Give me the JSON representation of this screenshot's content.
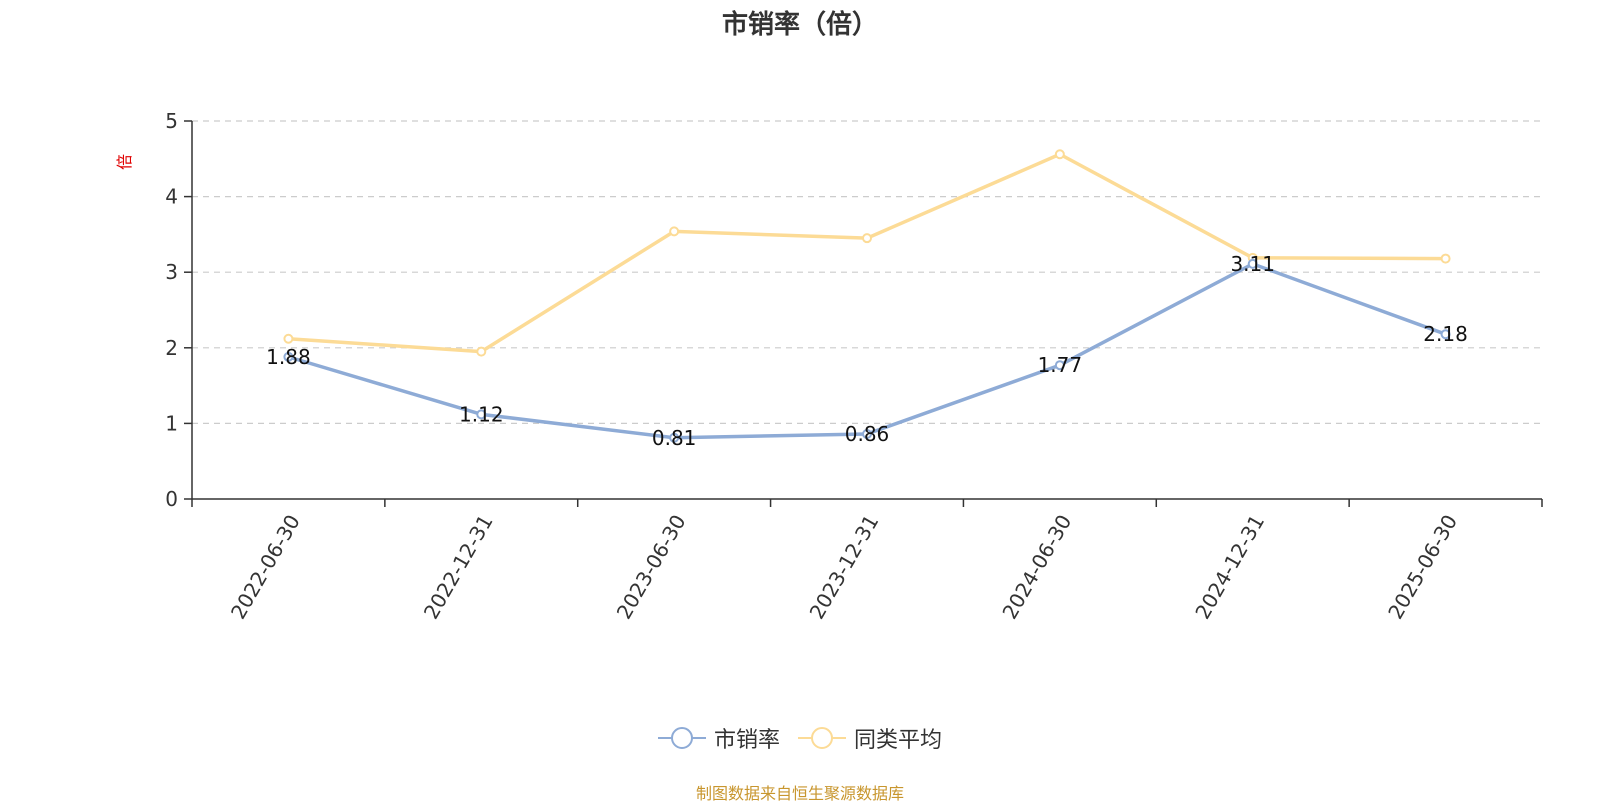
{
  "chart_data": {
    "type": "line",
    "title": "市销率（倍）",
    "ylabel": "倍",
    "xlabel": "",
    "categories": [
      "2022-06-30",
      "2022-12-31",
      "2023-06-30",
      "2023-12-31",
      "2024-06-30",
      "2024-12-31",
      "2025-06-30"
    ],
    "ylim": [
      0,
      5
    ],
    "yticks": [
      0,
      1,
      2,
      3,
      4,
      5
    ],
    "grid": true,
    "legend_position": "bottom-center",
    "series": [
      {
        "name": "市销率",
        "values": [
          1.88,
          1.12,
          0.81,
          0.86,
          1.77,
          3.11,
          2.18
        ],
        "color": "#8eabd6",
        "show_labels": true
      },
      {
        "name": "同类平均",
        "values": [
          2.12,
          1.95,
          3.54,
          3.45,
          4.56,
          3.19,
          3.18
        ],
        "color": "#fcdb96",
        "show_labels": false
      }
    ]
  },
  "source_note": "制图数据来自恒生聚源数据库"
}
